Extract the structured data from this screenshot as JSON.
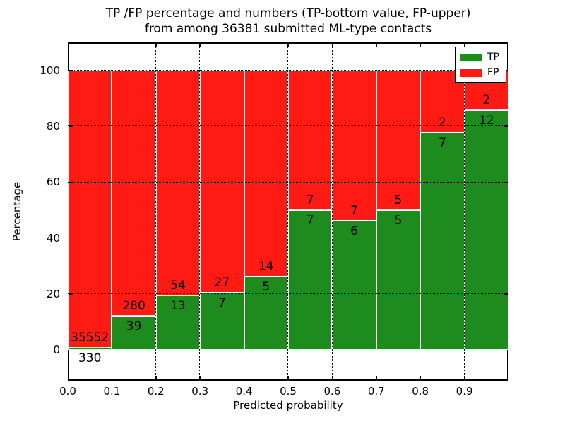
{
  "chart_data": {
    "type": "bar",
    "variant": "stacked-percentage",
    "title": "TP /FP percentage and numbers (TP-bottom value, FP-upper) from among 36381 submitted ML-type contacts",
    "title_lines": [
      "TP /FP percentage and numbers (TP-bottom value, FP-upper)",
      "from among 36381 submitted ML-type contacts"
    ],
    "xlabel": "Predicted probability",
    "ylabel": "Percentage",
    "xlim": [
      0.0,
      1.0
    ],
    "ylim": [
      -11,
      110
    ],
    "grid": "dotted",
    "legend_position": "upper-right",
    "bin_width": 0.1,
    "bin_starts": [
      0.0,
      0.1,
      0.2,
      0.3,
      0.4,
      0.5,
      0.6,
      0.7,
      0.8,
      0.9
    ],
    "xtick_labels": [
      "0.0",
      "0.1",
      "0.2",
      "0.3",
      "0.4",
      "0.5",
      "0.6",
      "0.7",
      "0.8",
      "0.9"
    ],
    "yticks": [
      0,
      20,
      40,
      60,
      80,
      100
    ],
    "series": [
      {
        "name": "TP",
        "color": "#1d8b1e",
        "counts": [
          330,
          39,
          13,
          7,
          5,
          7,
          6,
          5,
          7,
          12
        ]
      },
      {
        "name": "FP",
        "color": "#ff1a14",
        "counts": [
          35552,
          280,
          54,
          27,
          14,
          7,
          7,
          5,
          2,
          2
        ]
      }
    ],
    "tp_percent_by_bin": [
      0.92,
      12.23,
      19.4,
      20.59,
      26.32,
      50.0,
      46.15,
      50.0,
      77.78,
      85.71
    ],
    "total_contacts": 36381
  }
}
